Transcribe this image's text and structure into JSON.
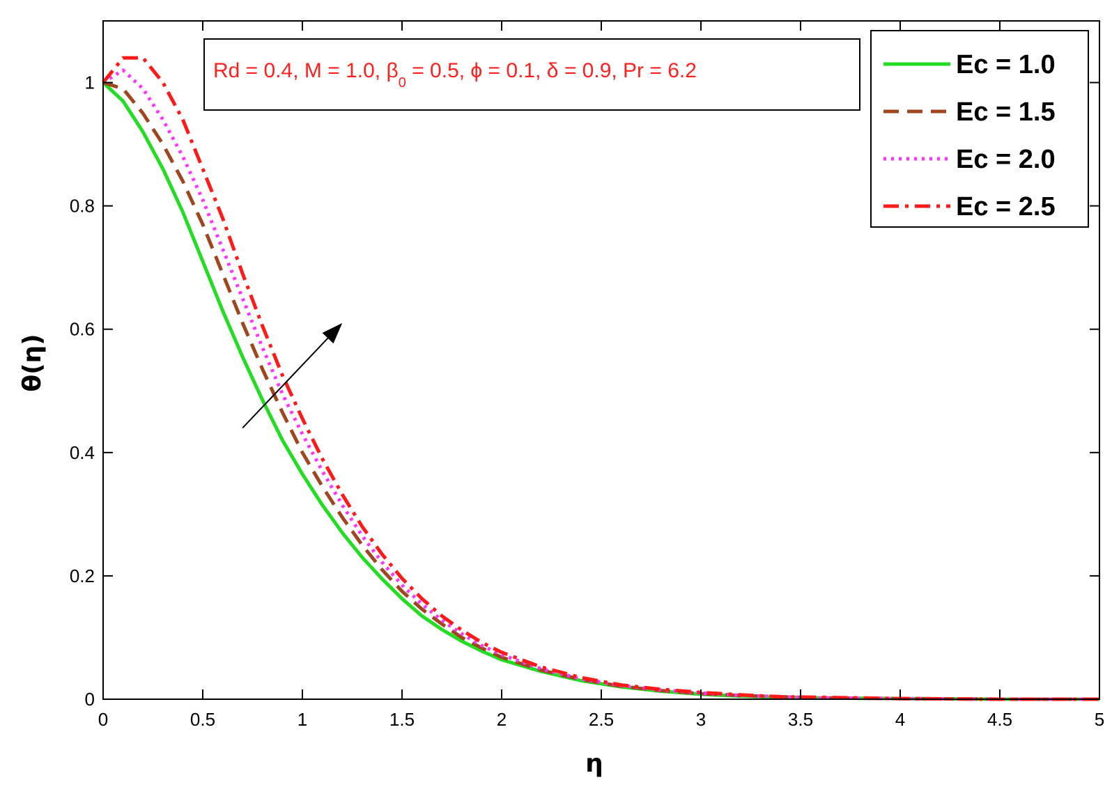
{
  "chart_data": {
    "type": "line",
    "xlabel": "η",
    "ylabel": "θ(η)",
    "xlim": [
      0,
      5
    ],
    "ylim": [
      0,
      1.1
    ],
    "xticks": [
      "0",
      "0.5",
      "1",
      "1.5",
      "2",
      "2.5",
      "3",
      "3.5",
      "4",
      "4.5",
      "5"
    ],
    "yticks": [
      "0",
      "0.2",
      "0.4",
      "0.6",
      "0.8",
      "1"
    ],
    "grid": false,
    "legend_position": "top-right",
    "annotation": {
      "part1": "Rd = 0.4, M = 1.0, β",
      "sub": "0",
      "part2": " = 0.5, ϕ = 0.1, δ = 0.9, Pr = 6.2"
    },
    "arrow": {
      "from": [
        0.7,
        0.44
      ],
      "to": [
        1.2,
        0.61
      ]
    },
    "x": [
      0,
      0.1,
      0.2,
      0.3,
      0.4,
      0.5,
      0.6,
      0.7,
      0.8,
      0.9,
      1.0,
      1.1,
      1.2,
      1.3,
      1.4,
      1.5,
      1.6,
      1.7,
      1.8,
      1.9,
      2.0,
      2.2,
      2.4,
      2.6,
      2.8,
      3.0,
      3.2,
      3.4,
      3.6,
      4.0,
      4.5,
      5.0
    ],
    "series": [
      {
        "name": "Ec = 1.0",
        "color": "#22dd22",
        "dash": "solid",
        "values": [
          1.0,
          0.97,
          0.92,
          0.86,
          0.79,
          0.71,
          0.63,
          0.555,
          0.485,
          0.42,
          0.365,
          0.315,
          0.27,
          0.23,
          0.195,
          0.163,
          0.135,
          0.113,
          0.094,
          0.078,
          0.064,
          0.045,
          0.03,
          0.02,
          0.013,
          0.008,
          0.005,
          0.003,
          0.002,
          0.001,
          0.0,
          0.0
        ]
      },
      {
        "name": "Ec = 1.5",
        "color": "#a0461e",
        "dash": "dashed",
        "values": [
          1.0,
          0.99,
          0.95,
          0.9,
          0.84,
          0.77,
          0.69,
          0.61,
          0.535,
          0.465,
          0.4,
          0.345,
          0.295,
          0.25,
          0.21,
          0.175,
          0.146,
          0.122,
          0.1,
          0.083,
          0.068,
          0.047,
          0.032,
          0.021,
          0.014,
          0.009,
          0.006,
          0.004,
          0.002,
          0.001,
          0.0,
          0.0
        ]
      },
      {
        "name": "Ec = 2.0",
        "color": "#ff33ff",
        "dash": "dotted",
        "values": [
          1.0,
          1.02,
          0.99,
          0.94,
          0.88,
          0.81,
          0.73,
          0.65,
          0.57,
          0.495,
          0.43,
          0.37,
          0.315,
          0.265,
          0.222,
          0.185,
          0.154,
          0.128,
          0.106,
          0.087,
          0.072,
          0.049,
          0.033,
          0.022,
          0.015,
          0.01,
          0.006,
          0.004,
          0.002,
          0.001,
          0.0,
          0.0
        ]
      },
      {
        "name": "Ec = 2.5",
        "color": "#ff1a1a",
        "dash": "dashdot",
        "values": [
          1.0,
          1.04,
          1.04,
          1.0,
          0.94,
          0.86,
          0.78,
          0.69,
          0.605,
          0.525,
          0.455,
          0.39,
          0.332,
          0.28,
          0.235,
          0.196,
          0.163,
          0.135,
          0.112,
          0.092,
          0.076,
          0.052,
          0.035,
          0.023,
          0.016,
          0.011,
          0.007,
          0.004,
          0.003,
          0.001,
          0.0,
          0.0
        ]
      }
    ]
  }
}
